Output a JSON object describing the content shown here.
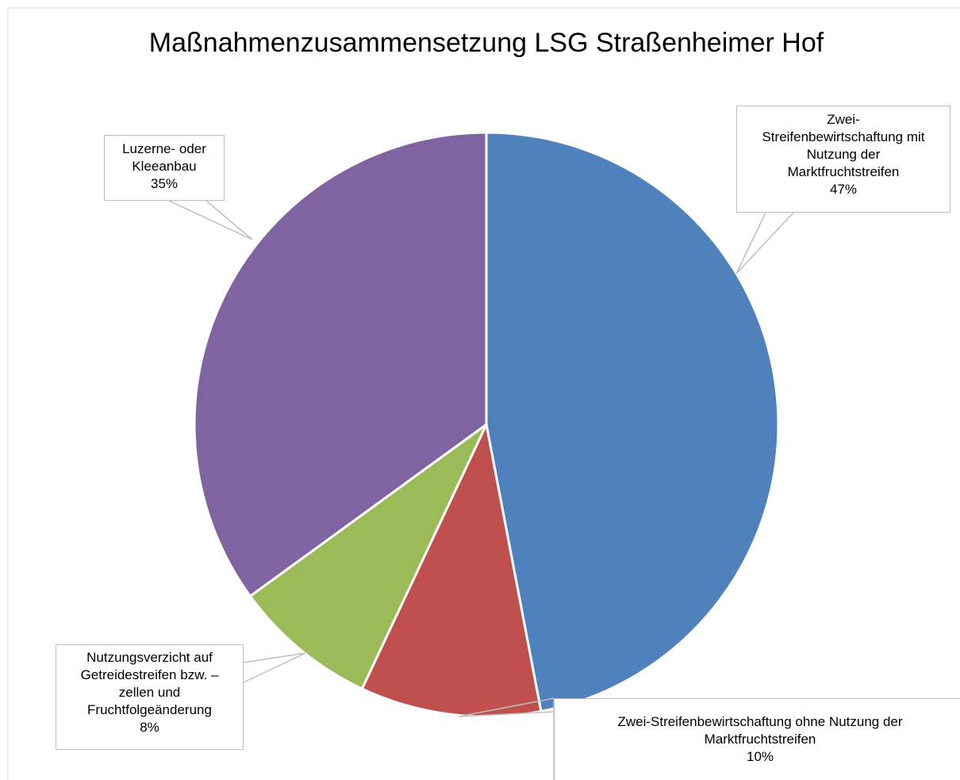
{
  "chart_data": {
    "type": "pie",
    "title": "Maßnahmenzusammensetzung LSG Straßenheimer Hof",
    "categories": [
      "Zwei-Streifenbewirtschaftung mit Nutzung der Marktfruchtstreifen",
      "Zwei-Streifenbewirtschaftung ohne Nutzung der Marktfruchtstreifen",
      "Nutzungsverzicht auf Getreidestreifen bzw. –zellen und Fruchtfolgeänderung",
      "Luzerne- oder Kleeanbau"
    ],
    "values": [
      47,
      10,
      8,
      35
    ],
    "value_labels": [
      "47%",
      "10%",
      "8%",
      "35%"
    ],
    "colors": [
      "#4f81bd",
      "#c0504d",
      "#9bbb59",
      "#8064a2"
    ]
  }
}
